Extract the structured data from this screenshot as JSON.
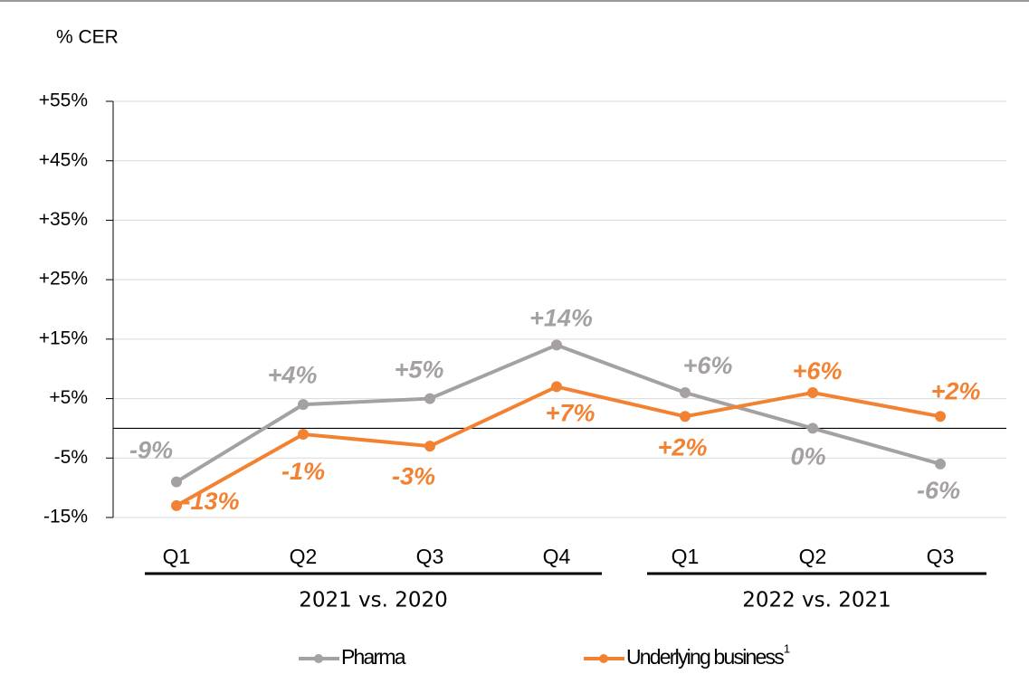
{
  "chart_data": {
    "type": "line",
    "y_axis_label": "% CER",
    "categories": [
      "Q1",
      "Q2",
      "Q3",
      "Q4",
      "Q1",
      "Q2",
      "Q3"
    ],
    "category_groups": [
      "2021 vs. 2020",
      "2022 vs. 2021"
    ],
    "series": [
      {
        "name": "Pharma",
        "color": "#a5a0a2",
        "values": [
          -9,
          4,
          5,
          14,
          6,
          0,
          -6
        ],
        "value_labels": [
          "-9%",
          "+4%",
          "+5%",
          "+14%",
          "+6%",
          "0%",
          "-6%"
        ]
      },
      {
        "name": "Underlying business",
        "legend_footnote": "1",
        "color": "#f28232",
        "values": [
          -13,
          -1,
          -3,
          7,
          2,
          6,
          2
        ],
        "value_labels": [
          "-13%",
          "-1%",
          "-3%",
          "+7%",
          "+2%",
          "+6%",
          "+2%"
        ]
      }
    ],
    "ylim": [
      -15,
      55
    ],
    "yticks": [
      {
        "value": -15,
        "label": "-15%"
      },
      {
        "value": -5,
        "label": "-5%"
      },
      {
        "value": 5,
        "label": "+5%"
      },
      {
        "value": 15,
        "label": "+15%"
      },
      {
        "value": 25,
        "label": "+25%"
      },
      {
        "value": 35,
        "label": "+35%"
      },
      {
        "value": 45,
        "label": "+45%"
      },
      {
        "value": 55,
        "label": "+55%"
      }
    ],
    "grid": true
  }
}
